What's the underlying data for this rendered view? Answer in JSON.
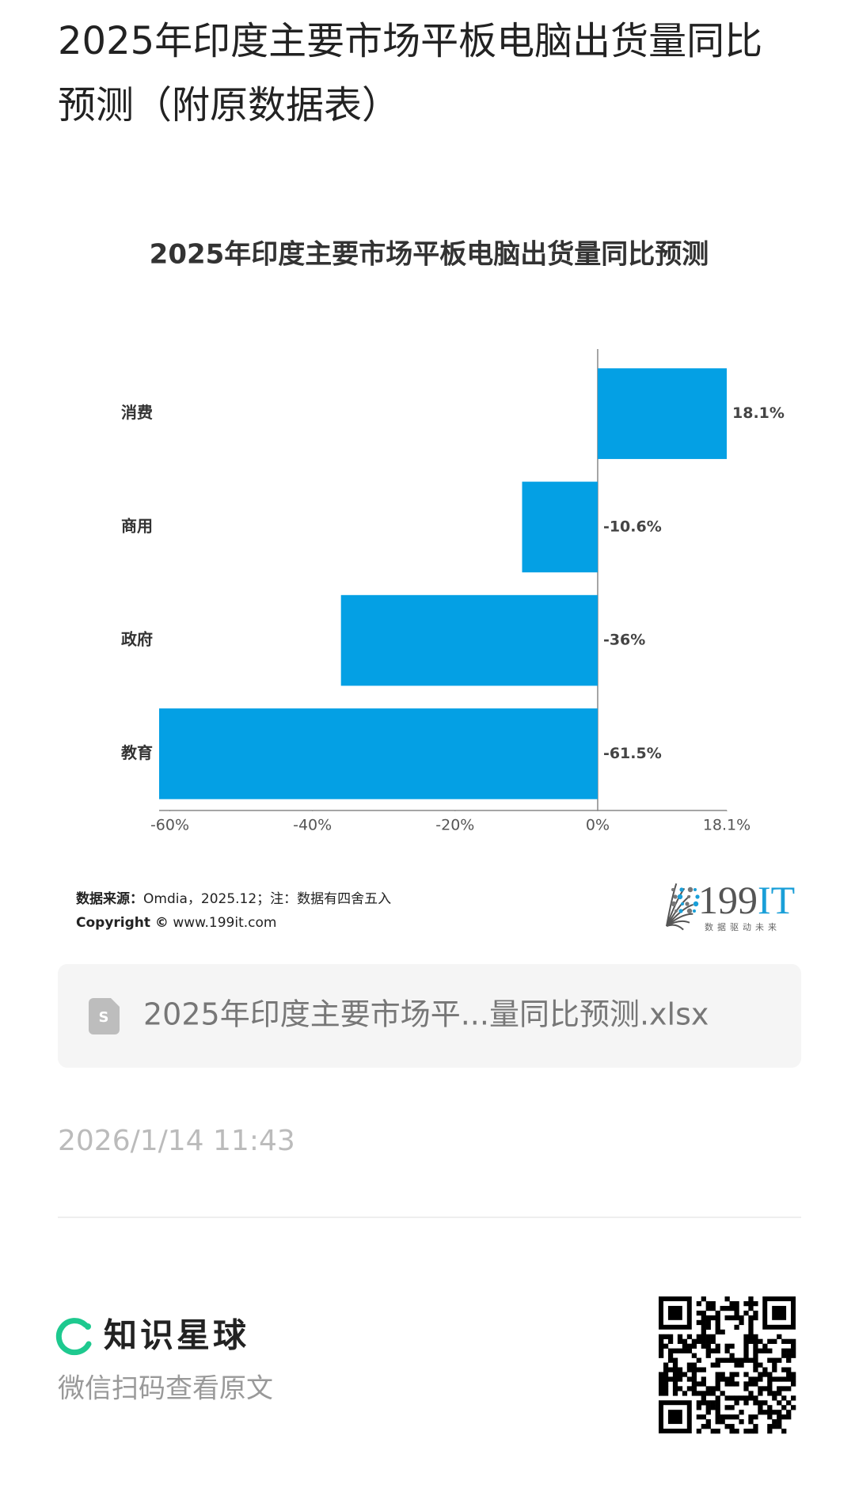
{
  "header": {
    "title_line1": "2025年印度主要市场平板电脑出货量同比",
    "title_line2": "预测（附原数据表）"
  },
  "chart_data": {
    "type": "hbar",
    "title": "2025年印度主要市场平板电脑出货量同比预测",
    "categories": [
      "消费",
      "商用",
      "政府",
      "教育"
    ],
    "values": [
      18.1,
      -10.6,
      -36,
      -61.5
    ],
    "value_labels": [
      "18.1%",
      "-10.6%",
      "-36%",
      "-61.5%"
    ],
    "color": "#04a0e4",
    "xlim": [
      -61.5,
      18.1
    ],
    "xticks": [
      {
        "value": -60,
        "label": "-60%"
      },
      {
        "value": -40,
        "label": "-40%"
      },
      {
        "value": -20,
        "label": "-20%"
      },
      {
        "value": 0,
        "label": "0%"
      },
      {
        "value": 18.1,
        "label": "18.1%"
      }
    ],
    "grid": false
  },
  "source": {
    "label": "数据来源：",
    "text": "Omdia，2025.12；注：数据有四舍五入",
    "copyright_label": "Copyright ©",
    "copyright_text": " www.199it.com"
  },
  "logo": {
    "text": "199",
    "accent": "IT",
    "slogan": "数据驱动未来"
  },
  "file": {
    "name": "2025年印度主要市场平...量同比预测.xlsx"
  },
  "timestamp": "2026/1/14 11:43",
  "footer": {
    "brand": "知识星球",
    "hint": "微信扫码查看原文"
  }
}
